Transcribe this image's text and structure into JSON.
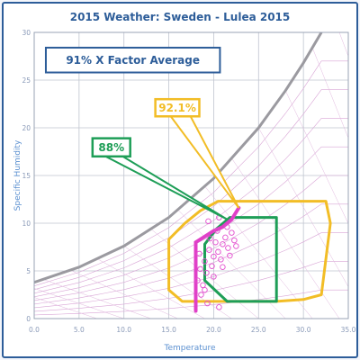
{
  "chart_data": {
    "type": "scatter",
    "title": "2015 Weather: Sweden - Lulea 2015",
    "xlabel": "Temperature",
    "ylabel": "Specific Humidity",
    "xlim": [
      0,
      35
    ],
    "ylim": [
      0,
      30
    ],
    "x_ticks": [
      "0.0",
      "5.0",
      "10.0",
      "15.0",
      "20.0",
      "25.0",
      "30.0",
      "35.0"
    ],
    "y_ticks": [
      "0",
      "5",
      "10",
      "15",
      "20",
      "25",
      "30"
    ],
    "grid": true,
    "saturation_curve": [
      [
        0,
        3.8
      ],
      [
        5,
        5.4
      ],
      [
        10,
        7.6
      ],
      [
        15,
        10.6
      ],
      [
        20,
        14.7
      ],
      [
        25,
        20.0
      ],
      [
        28,
        23.9
      ],
      [
        30,
        26.8
      ],
      [
        32,
        30.0
      ]
    ],
    "weather_points": [
      [
        18.2,
        4.0
      ],
      [
        18.5,
        5.2
      ],
      [
        18.8,
        3.5
      ],
      [
        19.0,
        6.0
      ],
      [
        19.2,
        4.8
      ],
      [
        19.5,
        7.2
      ],
      [
        19.8,
        5.5
      ],
      [
        20.0,
        6.5
      ],
      [
        20.2,
        8.0
      ],
      [
        20.5,
        7.0
      ],
      [
        20.8,
        6.2
      ],
      [
        21.0,
        7.8
      ],
      [
        21.3,
        8.5
      ],
      [
        21.6,
        7.4
      ],
      [
        22.0,
        9.0
      ],
      [
        22.3,
        8.2
      ],
      [
        20.4,
        9.2
      ],
      [
        19.6,
        8.4
      ],
      [
        19.0,
        3.0
      ],
      [
        18.6,
        2.5
      ],
      [
        20.6,
        1.2
      ],
      [
        19.3,
        1.6
      ],
      [
        21.0,
        5.4
      ],
      [
        20.0,
        4.4
      ],
      [
        21.8,
        6.6
      ],
      [
        19.4,
        10.2
      ],
      [
        20.6,
        10.6
      ],
      [
        22.5,
        7.6
      ],
      [
        21.5,
        9.6
      ],
      [
        18.4,
        6.8
      ]
    ],
    "weather_line": [
      [
        18.0,
        0.8
      ],
      [
        18.0,
        8.0
      ],
      [
        20.0,
        9.2
      ],
      [
        21.0,
        9.6
      ],
      [
        22.0,
        10.4
      ],
      [
        22.8,
        11.6
      ]
    ],
    "zones": [
      {
        "label": "92.1%",
        "color": "#f2bd26",
        "polygon": [
          [
            15.0,
            8.3
          ],
          [
            16.8,
            10.0
          ],
          [
            18.5,
            11.3
          ],
          [
            20.5,
            12.3
          ],
          [
            25.5,
            12.3
          ],
          [
            32.5,
            12.3
          ],
          [
            33.0,
            10.0
          ],
          [
            32.0,
            2.5
          ],
          [
            30.0,
            2.0
          ],
          [
            27.0,
            1.8
          ],
          [
            16.5,
            1.8
          ],
          [
            15.0,
            3.0
          ]
        ],
        "callout": [
          [
            13.5,
            23.0
          ],
          [
            18.4,
            23.0
          ],
          [
            18.4,
            21.2
          ],
          [
            13.5,
            21.2
          ]
        ],
        "pointer_tip": [
          22.8,
          11.6
        ]
      },
      {
        "label": "88%",
        "color": "#1e9e57",
        "polygon": [
          [
            19.0,
            7.8
          ],
          [
            20.3,
            9.4
          ],
          [
            21.8,
            10.6
          ],
          [
            27.0,
            10.6
          ],
          [
            27.0,
            1.8
          ],
          [
            21.5,
            1.8
          ],
          [
            19.0,
            4.0
          ]
        ],
        "callout": [
          [
            6.5,
            18.9
          ],
          [
            10.7,
            18.9
          ],
          [
            10.7,
            17.0
          ],
          [
            6.5,
            17.0
          ]
        ],
        "pointer_tip": [
          21.5,
          10.4
        ]
      }
    ],
    "banner": "91% X Factor Average"
  }
}
